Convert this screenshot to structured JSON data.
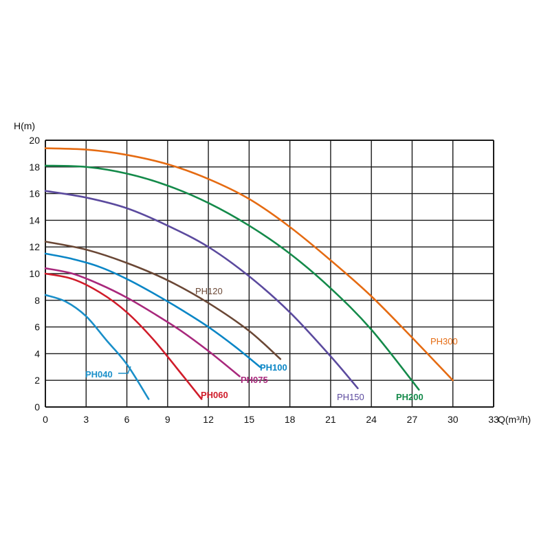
{
  "chart_data": {
    "type": "line",
    "title": "",
    "xlabel": "Q(m³/h)",
    "ylabel": "H(m)",
    "xlim": [
      0,
      33
    ],
    "ylim": [
      0,
      20
    ],
    "x_ticks": [
      "0",
      "3",
      "6",
      "9",
      "12",
      "15",
      "18",
      "21",
      "24",
      "27",
      "30",
      "33"
    ],
    "y_ticks": [
      "0",
      "2",
      "4",
      "6",
      "8",
      "10",
      "12",
      "14",
      "16",
      "18",
      "20"
    ],
    "grid": true,
    "series": [
      {
        "name": "PH040",
        "color": "#1a8fc9",
        "x": [
          0,
          1.5,
          3,
          4.5,
          6,
          7.6
        ],
        "y": [
          8.4,
          7.9,
          6.8,
          5.0,
          3.2,
          0.6
        ]
      },
      {
        "name": "PH060",
        "color": "#d01c2a",
        "x": [
          0,
          2,
          4,
          6,
          8,
          10,
          11.5
        ],
        "y": [
          10.0,
          9.6,
          8.6,
          7.1,
          5.0,
          2.5,
          0.6
        ]
      },
      {
        "name": "PH075",
        "color": "#a8287c",
        "x": [
          0,
          2,
          4,
          6,
          8,
          10,
          12,
          14.3
        ],
        "y": [
          10.4,
          10.0,
          9.2,
          8.2,
          7.0,
          5.7,
          4.2,
          2.3
        ]
      },
      {
        "name": "PH100",
        "color": "#0a86c6",
        "x": [
          0,
          2,
          4,
          6,
          8,
          10,
          12,
          14,
          15.8
        ],
        "y": [
          11.5,
          11.1,
          10.5,
          9.6,
          8.5,
          7.3,
          6.0,
          4.5,
          3.0
        ]
      },
      {
        "name": "PH120",
        "color": "#6a4735",
        "x": [
          0,
          3,
          6,
          9,
          12,
          15,
          17.3
        ],
        "y": [
          12.4,
          11.8,
          10.8,
          9.5,
          7.8,
          5.7,
          3.6
        ]
      },
      {
        "name": "PH150",
        "color": "#5b4a9e",
        "x": [
          0,
          3,
          6,
          9,
          12,
          15,
          18,
          21,
          23
        ],
        "y": [
          16.2,
          15.7,
          14.9,
          13.6,
          12.0,
          9.8,
          7.1,
          3.8,
          1.4
        ]
      },
      {
        "name": "PH200",
        "color": "#148a4a",
        "x": [
          0,
          3,
          6,
          9,
          12,
          15,
          18,
          21,
          24,
          27.5
        ],
        "y": [
          18.1,
          18.0,
          17.5,
          16.6,
          15.3,
          13.6,
          11.5,
          8.9,
          5.8,
          1.3
        ]
      },
      {
        "name": "PH300",
        "color": "#e56b12",
        "x": [
          0,
          3,
          6,
          9,
          12,
          15,
          18,
          21,
          24,
          27,
          30
        ],
        "y": [
          19.4,
          19.3,
          18.9,
          18.2,
          17.1,
          15.6,
          13.5,
          11.0,
          8.3,
          5.2,
          2.0
        ]
      }
    ]
  }
}
